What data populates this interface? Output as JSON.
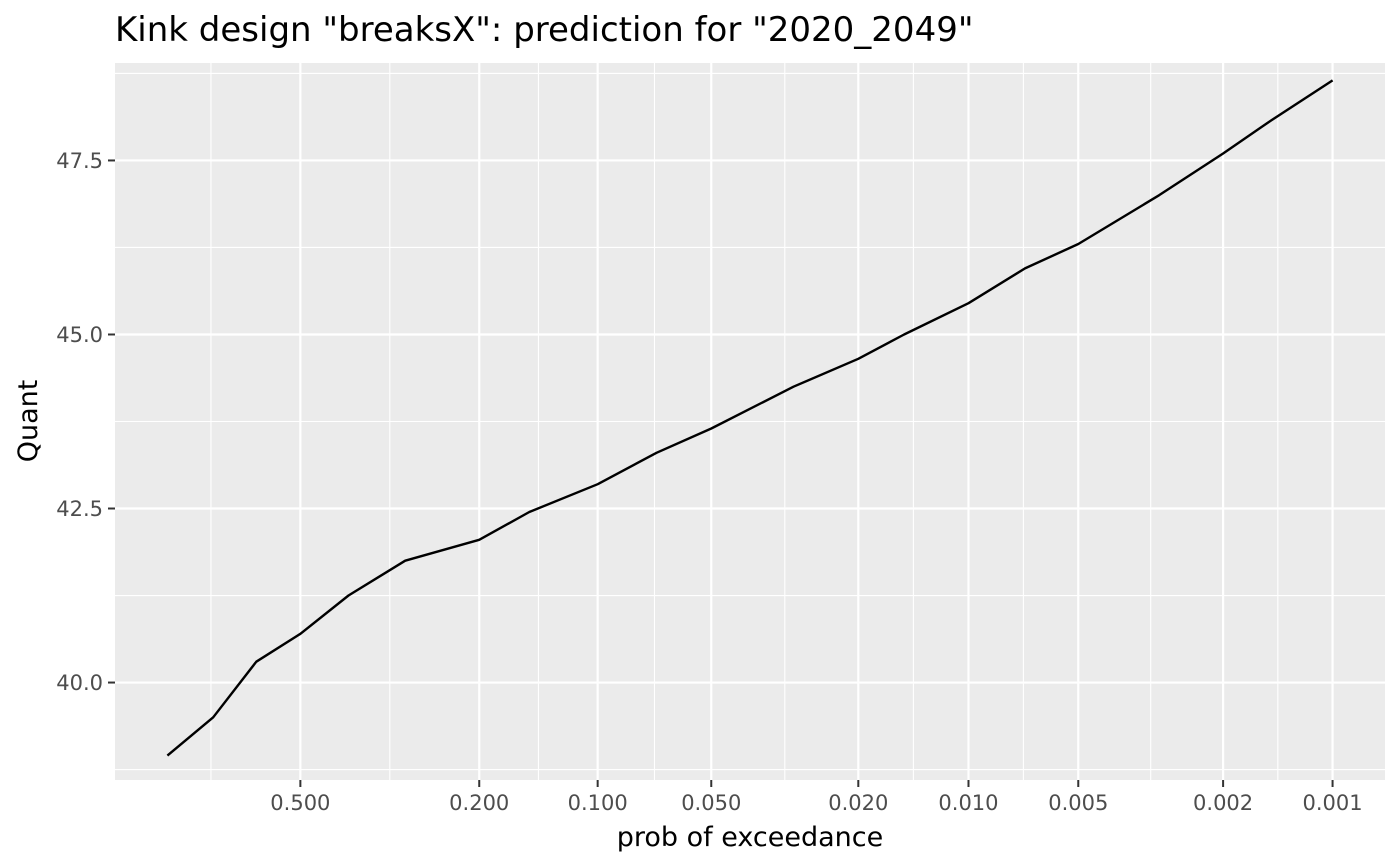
{
  "chart_data": {
    "type": "line",
    "title": "Kink design \"breaksX\": prediction for \"2020_2049\"",
    "xlabel": "prob of exceedance",
    "ylabel": "Quant",
    "x_scale": "probability-of-exceedance",
    "x_reversed": true,
    "x_ticks": [
      0.5,
      0.2,
      0.1,
      0.05,
      0.02,
      0.01,
      0.005,
      0.002,
      0.001
    ],
    "x_tick_labels": [
      "0.500",
      "0.200",
      "0.100",
      "0.050",
      "0.020",
      "0.010",
      "0.005",
      "0.002",
      "0.001"
    ],
    "y_ticks": [
      40.0,
      42.5,
      45.0,
      47.5
    ],
    "y_tick_labels": [
      "40.0",
      "42.5",
      "45.0",
      "47.5"
    ],
    "ylim": [
      38.6,
      48.9
    ],
    "grid": true,
    "line_color": "#000000",
    "panel_color": "#ebebeb",
    "grid_color": "#ffffff",
    "series": [
      {
        "x": [
          0.8,
          0.7,
          0.6,
          0.5,
          0.4,
          0.3,
          0.2,
          0.15,
          0.1,
          0.07,
          0.05,
          0.03,
          0.02,
          0.015,
          0.01,
          0.007,
          0.005,
          0.003,
          0.002,
          0.0015,
          0.001
        ],
        "values": [
          38.95,
          39.5,
          40.3,
          40.7,
          41.25,
          41.75,
          42.05,
          42.45,
          42.85,
          43.3,
          43.65,
          44.25,
          44.65,
          45.0,
          45.45,
          45.95,
          46.3,
          47.0,
          47.6,
          48.05,
          48.65
        ]
      }
    ]
  }
}
